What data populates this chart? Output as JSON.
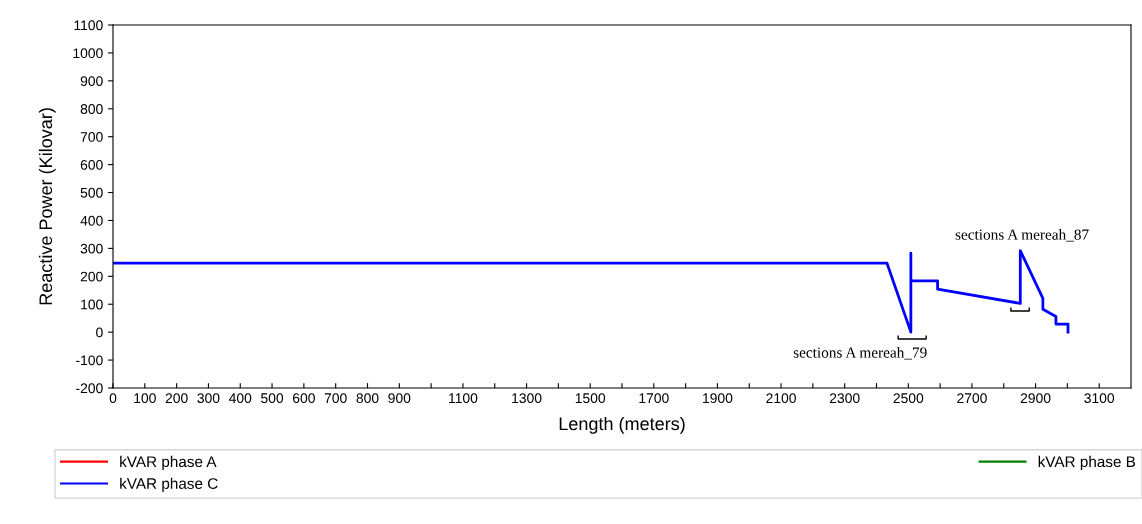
{
  "chart_data": {
    "type": "line",
    "xlabel": "Length (meters)",
    "ylabel": "Reactive Power (Kilovar)",
    "x": [
      0,
      2433,
      2508,
      2508,
      2508,
      2592,
      2592,
      2852,
      2852,
      2923,
      2923,
      2964,
      2964,
      3002,
      3002
    ],
    "series": [
      {
        "name": "kVAR phase A",
        "color": "#ff0000",
        "values": [
          null,
          null,
          null,
          null,
          null,
          null,
          null,
          null,
          null,
          null,
          null,
          null,
          null,
          null,
          null
        ]
      },
      {
        "name": "kVAR phase B",
        "color": "#008000",
        "values": [
          null,
          null,
          null,
          null,
          null,
          null,
          null,
          null,
          null,
          null,
          null,
          null,
          null,
          null,
          null
        ]
      },
      {
        "name": "kVAR phase C",
        "color": "#0000ff",
        "values": [
          247,
          247,
          0,
          283,
          184,
          184,
          154,
          103,
          292,
          121,
          82,
          56,
          29,
          29,
          0
        ]
      }
    ],
    "xlim": [
      0,
      3200
    ],
    "ylim": [
      -200,
      1100
    ],
    "xticks": [
      0,
      100,
      200,
      300,
      400,
      500,
      600,
      700,
      800,
      900,
      {
        "value": 1000,
        "label": null
      },
      1100,
      {
        "value": 1200,
        "label": null
      },
      1300,
      {
        "value": 1400,
        "label": null
      },
      1500,
      {
        "value": 1600,
        "label": null
      },
      1700,
      {
        "value": 1800,
        "label": null
      },
      1900,
      {
        "value": 2000,
        "label": null
      },
      2100,
      {
        "value": 2200,
        "label": null
      },
      2300,
      {
        "value": 2400,
        "label": null
      },
      2500,
      {
        "value": 2600,
        "label": null
      },
      2700,
      {
        "value": 2800,
        "label": null
      },
      2900,
      {
        "value": 3000,
        "label": null
      },
      3100
    ],
    "yticks": [
      -200,
      -100,
      0,
      100,
      200,
      300,
      400,
      500,
      600,
      700,
      800,
      900,
      1000,
      1100
    ],
    "annotations": [
      "sections A mereah_79",
      "sections A mereah_87"
    ],
    "grid": false,
    "legend": "bottom",
    "marker": "none",
    "line_style": "solid"
  }
}
